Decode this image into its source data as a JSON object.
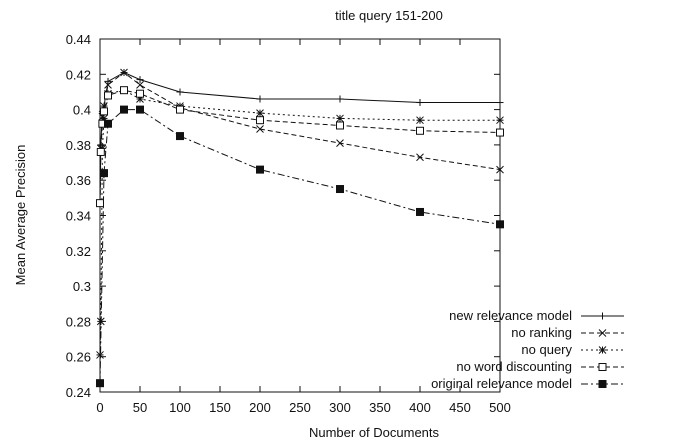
{
  "chart_data": {
    "type": "line",
    "title": "title query 151-200",
    "xlabel": "Number of Documents",
    "ylabel": "Mean Average Precision",
    "xlim": [
      0,
      500
    ],
    "ylim": [
      0.24,
      0.44
    ],
    "xticks": [
      0,
      50,
      100,
      150,
      200,
      250,
      300,
      350,
      400,
      450,
      500
    ],
    "yticks": [
      0.24,
      0.26,
      0.28,
      0.3,
      0.32,
      0.34,
      0.36,
      0.38,
      0.4,
      0.42,
      0.44
    ],
    "xtick_labels": [
      "0",
      "50",
      "100",
      "150",
      "200",
      "250",
      "300",
      "350",
      "400",
      "450",
      "500"
    ],
    "ytick_labels": [
      "0.24",
      "0.26",
      "0.28",
      "0.3",
      "0.32",
      "0.34",
      "0.36",
      "0.38",
      "0.4",
      "0.42",
      "0.44"
    ],
    "grid": false,
    "legend_position": "bottom-right",
    "series": [
      {
        "name": "new relevance model",
        "marker": "plus",
        "dash": "solid",
        "x": [
          0,
          1,
          3,
          5,
          10,
          30,
          50,
          100,
          200,
          300,
          400,
          500
        ],
        "y": [
          0.348,
          0.38,
          0.399,
          0.402,
          0.416,
          0.421,
          0.417,
          0.41,
          0.406,
          0.406,
          0.404,
          0.404
        ]
      },
      {
        "name": "no ranking",
        "marker": "x",
        "dash": "dashed",
        "x": [
          0,
          1,
          3,
          5,
          10,
          30,
          50,
          100,
          200,
          300,
          400,
          500
        ],
        "y": [
          0.347,
          0.378,
          0.396,
          0.402,
          0.414,
          0.421,
          0.414,
          0.401,
          0.389,
          0.381,
          0.373,
          0.366
        ]
      },
      {
        "name": "no query",
        "marker": "star",
        "dash": "dotted",
        "x": [
          0,
          1,
          3,
          5,
          10,
          30,
          50,
          100,
          200,
          300,
          400,
          500
        ],
        "y": [
          0.261,
          0.28,
          0.378,
          0.395,
          0.409,
          0.411,
          0.406,
          0.402,
          0.398,
          0.395,
          0.394,
          0.394
        ]
      },
      {
        "name": "no word discounting",
        "marker": "open-square",
        "dash": "dashed",
        "x": [
          0,
          1,
          3,
          5,
          10,
          30,
          50,
          100,
          200,
          300,
          400,
          500
        ],
        "y": [
          0.347,
          0.376,
          0.392,
          0.399,
          0.408,
          0.411,
          0.409,
          0.4,
          0.394,
          0.391,
          0.388,
          0.387
        ]
      },
      {
        "name": "original relevance model",
        "marker": "filled-square",
        "dash": "dashdot",
        "x": [
          0,
          5,
          10,
          30,
          50,
          100,
          200,
          300,
          400,
          500
        ],
        "y": [
          0.245,
          0.364,
          0.392,
          0.4,
          0.4,
          0.385,
          0.366,
          0.355,
          0.342,
          0.335
        ]
      }
    ]
  }
}
